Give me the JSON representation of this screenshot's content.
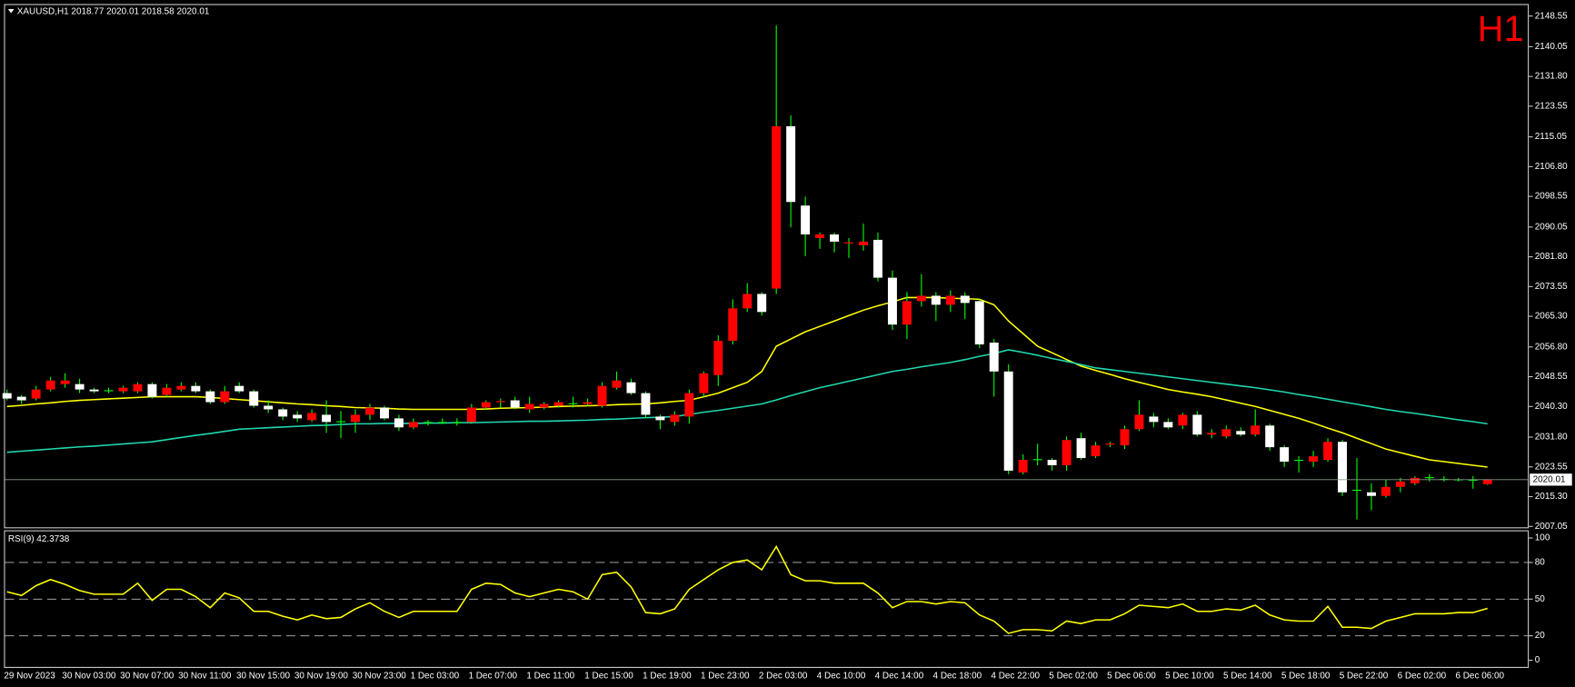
{
  "chart_data": [
    {
      "type": "candlestick",
      "title": "XAUUSD,H1  2018.77 2020.01 2018.58 2020.01",
      "timeframe_label": "H1",
      "categories": [
        "29 Nov 2023",
        null,
        null,
        null,
        "30 Nov 03:00",
        null,
        null,
        null,
        "30 Nov 07:00",
        null,
        null,
        null,
        "30 Nov 11:00",
        null,
        null,
        null,
        "30 Nov 15:00",
        null,
        null,
        null,
        "30 Nov 19:00",
        null,
        null,
        null,
        "30 Nov 23:00",
        null,
        null,
        null,
        "1 Dec 03:00",
        null,
        null,
        null,
        "1 Dec 07:00",
        null,
        null,
        null,
        "1 Dec 11:00",
        null,
        null,
        null,
        "1 Dec 15:00",
        null,
        null,
        null,
        "1 Dec 19:00",
        null,
        null,
        null,
        "1 Dec 23:00",
        null,
        null,
        null,
        "2 Dec 03:00",
        null,
        null,
        null,
        "4 Dec 10:00",
        null,
        null,
        null,
        "4 Dec 14:00",
        null,
        null,
        null,
        "4 Dec 18:00",
        null,
        null,
        null,
        "4 Dec 22:00",
        null,
        null,
        null,
        "5 Dec 02:00",
        null,
        null,
        null,
        "5 Dec 06:00",
        null,
        null,
        null,
        "5 Dec 10:00",
        null,
        null,
        null,
        "5 Dec 14:00",
        null,
        null,
        null,
        "5 Dec 18:00",
        null,
        null,
        null,
        "5 Dec 22:00",
        null,
        null,
        null,
        "6 Dec 02:00",
        null,
        null,
        null,
        "6 Dec 06:00",
        null,
        null
      ],
      "open": [
        2044,
        2043,
        2042.5,
        2045,
        2046.5,
        2046.5,
        2045,
        2044.6,
        2044.5,
        2044.5,
        2046.5,
        2043.5,
        2045,
        2046,
        2044.5,
        2041.5,
        2046,
        2044.5,
        2040.5,
        2039.5,
        2038,
        2036.5,
        2038,
        2036,
        2036,
        2038,
        2040,
        2037,
        2034.5,
        2035.8,
        2036,
        2035.8,
        2036,
        2040,
        2041.5,
        2042,
        2039.5,
        2040,
        2040.5,
        2041,
        2041,
        2040.5,
        2045.5,
        2047,
        2044,
        2037.5,
        2036,
        2037.5,
        2044,
        2049,
        2058.5,
        2067.5,
        2071.5,
        2073,
        2118,
        2096,
        2087,
        2088,
        2085.5,
        2085,
        2086.5,
        2076,
        2063,
        2069.5,
        2071,
        2068.5,
        2071,
        2069.5,
        2058,
        2050,
        2022,
        2025.5,
        2025.5,
        2024,
        2031.5,
        2026.5,
        2029.7,
        2029.5,
        2034,
        2037.5,
        2036,
        2035,
        2038,
        2032.5,
        2032,
        2033.5,
        2032.5,
        2035,
        2029,
        2025.5,
        2025,
        2025.5,
        2030.5,
        2017,
        2016.5,
        2015.5,
        2018,
        2019,
        2020.5,
        2020.2,
        2020,
        2020,
        2018.77
      ],
      "high": [
        2045,
        2043.5,
        2046,
        2048.5,
        2049.5,
        2048,
        2045.5,
        2045.5,
        2046,
        2047,
        2047,
        2046.5,
        2047,
        2047,
        2045,
        2046,
        2047,
        2045,
        2042,
        2040,
        2039,
        2039.5,
        2042,
        2039,
        2039.5,
        2041,
        2040.5,
        2038,
        2037,
        2036.5,
        2037,
        2037,
        2041,
        2042,
        2042.5,
        2043,
        2043,
        2041.5,
        2042,
        2043,
        2042.5,
        2047,
        2050,
        2048,
        2044.5,
        2038,
        2039,
        2045,
        2050,
        2060,
        2070,
        2074.5,
        2072,
        2146,
        2121,
        2098.5,
        2088.5,
        2088.5,
        2087,
        2091,
        2088.5,
        2078,
        2072,
        2077,
        2072,
        2072.5,
        2072,
        2070,
        2059,
        2052,
        2027,
        2030,
        2026,
        2032,
        2033,
        2030.5,
        2030.5,
        2035,
        2042,
        2038.5,
        2037,
        2038.5,
        2039,
        2034,
        2035,
        2034.5,
        2039.5,
        2035.5,
        2029.5,
        2026.5,
        2028,
        2031.5,
        2031,
        2026,
        2019,
        2020,
        2020.5,
        2021,
        2021.5,
        2021,
        2020.5,
        2021,
        2020.01
      ],
      "low": [
        2042,
        2041,
        2042,
        2044.5,
        2045.5,
        2044,
        2044,
        2044,
        2044,
        2044,
        2042.5,
        2043,
        2044.5,
        2044,
        2041,
        2041,
        2044,
        2040,
        2038.5,
        2036.5,
        2036,
        2036,
        2033,
        2031.5,
        2033,
        2036.5,
        2036.5,
        2033.5,
        2034,
        2035,
        2035.5,
        2035,
        2035.5,
        2039.5,
        2040,
        2039.5,
        2038.5,
        2039.5,
        2040,
        2040,
        2040.5,
        2040,
        2045,
        2043.5,
        2037,
        2034,
        2035,
        2035.5,
        2043,
        2046,
        2057.5,
        2066.5,
        2065.5,
        2071.5,
        2090,
        2082,
        2084,
        2083,
        2081.5,
        2083.5,
        2075,
        2061.5,
        2059,
        2068,
        2064,
        2066.5,
        2064.5,
        2056.5,
        2043,
        2021.5,
        2021.5,
        2024,
        2022.5,
        2022.5,
        2025.5,
        2026,
        2029,
        2028.5,
        2033.5,
        2034.5,
        2034,
        2034,
        2032,
        2031.5,
        2031.5,
        2032,
        2032,
        2028,
        2023.5,
        2022,
        2023.5,
        2025,
        2015.5,
        2009,
        2011.5,
        2015,
        2016.5,
        2018.5,
        2019.5,
        2019.5,
        2019.5,
        2017.5,
        2018.58
      ],
      "close": [
        2042.5,
        2042,
        2045,
        2047.5,
        2047.5,
        2045,
        2044.5,
        2044.8,
        2045.5,
        2046.5,
        2043,
        2045.5,
        2046,
        2044.5,
        2041.5,
        2044.5,
        2044.5,
        2040.5,
        2039.5,
        2037.5,
        2037,
        2038.5,
        2036,
        2036.2,
        2038,
        2040,
        2037,
        2034.5,
        2036,
        2036,
        2035.8,
        2036,
        2040,
        2041.5,
        2041.8,
        2040,
        2041,
        2041,
        2041.5,
        2041.2,
        2041.5,
        2046,
        2047.5,
        2044,
        2038,
        2036.5,
        2038,
        2044,
        2049.5,
        2058.5,
        2067.5,
        2071.5,
        2066.5,
        2118,
        2097,
        2088,
        2088,
        2086,
        2085.8,
        2086,
        2076,
        2063,
        2069.5,
        2071,
        2068.5,
        2071,
        2069,
        2057.5,
        2050,
        2022.5,
        2025.5,
        2025.7,
        2024,
        2031,
        2026,
        2029.5,
        2030,
        2034,
        2038,
        2036,
        2034.5,
        2038,
        2032.5,
        2033,
        2034,
        2032.5,
        2035,
        2029,
        2025,
        2025.3,
        2026.5,
        2030.5,
        2016.5,
        2017.2,
        2015.5,
        2018,
        2019.5,
        2020.5,
        2020.7,
        2020,
        2020.1,
        2019.8,
        2020.01
      ],
      "up_color": "#ff0000",
      "down_color": "#ffffff",
      "wick_color": "#00ff00",
      "series": [
        {
          "color": "#ffff00",
          "values": [
            2040.3,
            2040.6,
            2041.0,
            2041.3,
            2041.7,
            2042.0,
            2042.2,
            2042.4,
            2042.6,
            2042.8,
            2043.0,
            2043.0,
            2043.0,
            2043.0,
            2042.8,
            2042.5,
            2042.2,
            2041.9,
            2041.6,
            2041.3,
            2041.0,
            2040.8,
            2040.5,
            2040.3,
            2040.0,
            2039.9,
            2039.8,
            2039.6,
            2039.5,
            2039.5,
            2039.5,
            2039.5,
            2039.5,
            2039.6,
            2039.8,
            2039.9,
            2040.0,
            2040.1,
            2040.3,
            2040.4,
            2040.5,
            2040.6,
            2040.8,
            2040.9,
            2041.0,
            2041.3,
            2041.7,
            2042.0,
            2043.0,
            2044.0,
            2045.5,
            2047.0,
            2050.0,
            2057.0,
            2059.0,
            2061.0,
            2062.5,
            2064.0,
            2065.5,
            2067.0,
            2068.2,
            2069.3,
            2070.5,
            2070.5,
            2070.5,
            2070.3,
            2070.2,
            2070.0,
            2068.5,
            2064.0,
            2060.5,
            2057.0,
            2055.2,
            2053.3,
            2051.5,
            2050.3,
            2049.2,
            2048.0,
            2047.0,
            2046.0,
            2045.0,
            2044.3,
            2043.7,
            2043.0,
            2042.1,
            2041.2,
            2040.3,
            2039.2,
            2038.1,
            2037.0,
            2035.7,
            2034.3,
            2033.0,
            2031.5,
            2030.0,
            2028.5,
            2027.5,
            2026.5,
            2025.5,
            2025.0,
            2024.5,
            2024.0,
            2023.5
          ]
        },
        {
          "color": "#20d8b0",
          "values": [
            2027.6,
            2027.9,
            2028.2,
            2028.5,
            2028.8,
            2029.1,
            2029.3,
            2029.6,
            2029.9,
            2030.2,
            2030.5,
            2031.1,
            2031.7,
            2032.3,
            2032.8,
            2033.4,
            2034.0,
            2034.2,
            2034.4,
            2034.6,
            2034.8,
            2035.0,
            2035.1,
            2035.3,
            2035.5,
            2035.5,
            2035.6,
            2035.6,
            2035.6,
            2035.7,
            2035.7,
            2035.8,
            2035.8,
            2035.9,
            2036.0,
            2036.1,
            2036.2,
            2036.2,
            2036.3,
            2036.4,
            2036.5,
            2036.7,
            2036.8,
            2037.0,
            2037.2,
            2037.3,
            2037.5,
            2038.1,
            2038.7,
            2039.2,
            2039.8,
            2040.4,
            2041.0,
            2042.1,
            2043.3,
            2044.4,
            2045.5,
            2046.4,
            2047.3,
            2048.2,
            2049.1,
            2050.0,
            2050.6,
            2051.3,
            2051.9,
            2052.5,
            2053.3,
            2054.2,
            2055.0,
            2056.0,
            2055.3,
            2054.5,
            2053.6,
            2052.8,
            2051.9,
            2051.0,
            2050.5,
            2050.0,
            2049.5,
            2049.0,
            2048.5,
            2048.0,
            2047.5,
            2047.0,
            2046.5,
            2046.0,
            2045.5,
            2044.9,
            2044.3,
            2043.6,
            2043.0,
            2042.3,
            2041.6,
            2040.9,
            2040.2,
            2039.5,
            2038.9,
            2038.4,
            2037.8,
            2037.2,
            2036.6,
            2036.1,
            2035.5
          ]
        }
      ],
      "price_line": 2020.01,
      "ylim": [
        2006.8,
        2151.6
      ],
      "yticks": [
        2148.55,
        2140.05,
        {
          "value": 2131.8,
          "label": "2131.80"
        },
        2123.55,
        2115.05,
        {
          "value": 2106.8,
          "label": "2106.80"
        },
        2098.55,
        2090.05,
        {
          "value": 2081.8,
          "label": "2081.80"
        },
        2073.55,
        {
          "value": 2065.3,
          "label": "2065.30"
        },
        {
          "value": 2056.8,
          "label": "2056.80"
        },
        2048.55,
        {
          "value": 2040.3,
          "label": "2040.30"
        },
        {
          "value": 2031.8,
          "label": "2031.80"
        },
        2023.55,
        {
          "value": 2015.3,
          "label": "2015.30"
        },
        2007.05
      ]
    },
    {
      "type": "line",
      "title": "RSI(9) 42.3738",
      "color": "#ffff00",
      "values": [
        56,
        53,
        61,
        66,
        62,
        57,
        54,
        54,
        54,
        63,
        49,
        58,
        58,
        52,
        43,
        55,
        51,
        40,
        40,
        36,
        33,
        37,
        34,
        35,
        42,
        47,
        40,
        35,
        40,
        40,
        40,
        40,
        58,
        63,
        62,
        55,
        52,
        55,
        58,
        56,
        50,
        70,
        72,
        60,
        39,
        38,
        42,
        58,
        66,
        74,
        80,
        82,
        74,
        93,
        70,
        65,
        65,
        63,
        63,
        63,
        55,
        43,
        48,
        48,
        46,
        48,
        47,
        37,
        32,
        22,
        25,
        25,
        24,
        32,
        30,
        33,
        33,
        38,
        45,
        44,
        43,
        46,
        40,
        40,
        42,
        41,
        45,
        37,
        33,
        32,
        32,
        44,
        27,
        27,
        26,
        32,
        35,
        38,
        38,
        38,
        39,
        39,
        42.3738
      ],
      "ylim": [
        -3,
        103
      ],
      "yticks": [
        0,
        20,
        50,
        80,
        100
      ],
      "levels": [
        20,
        50,
        80
      ]
    }
  ]
}
